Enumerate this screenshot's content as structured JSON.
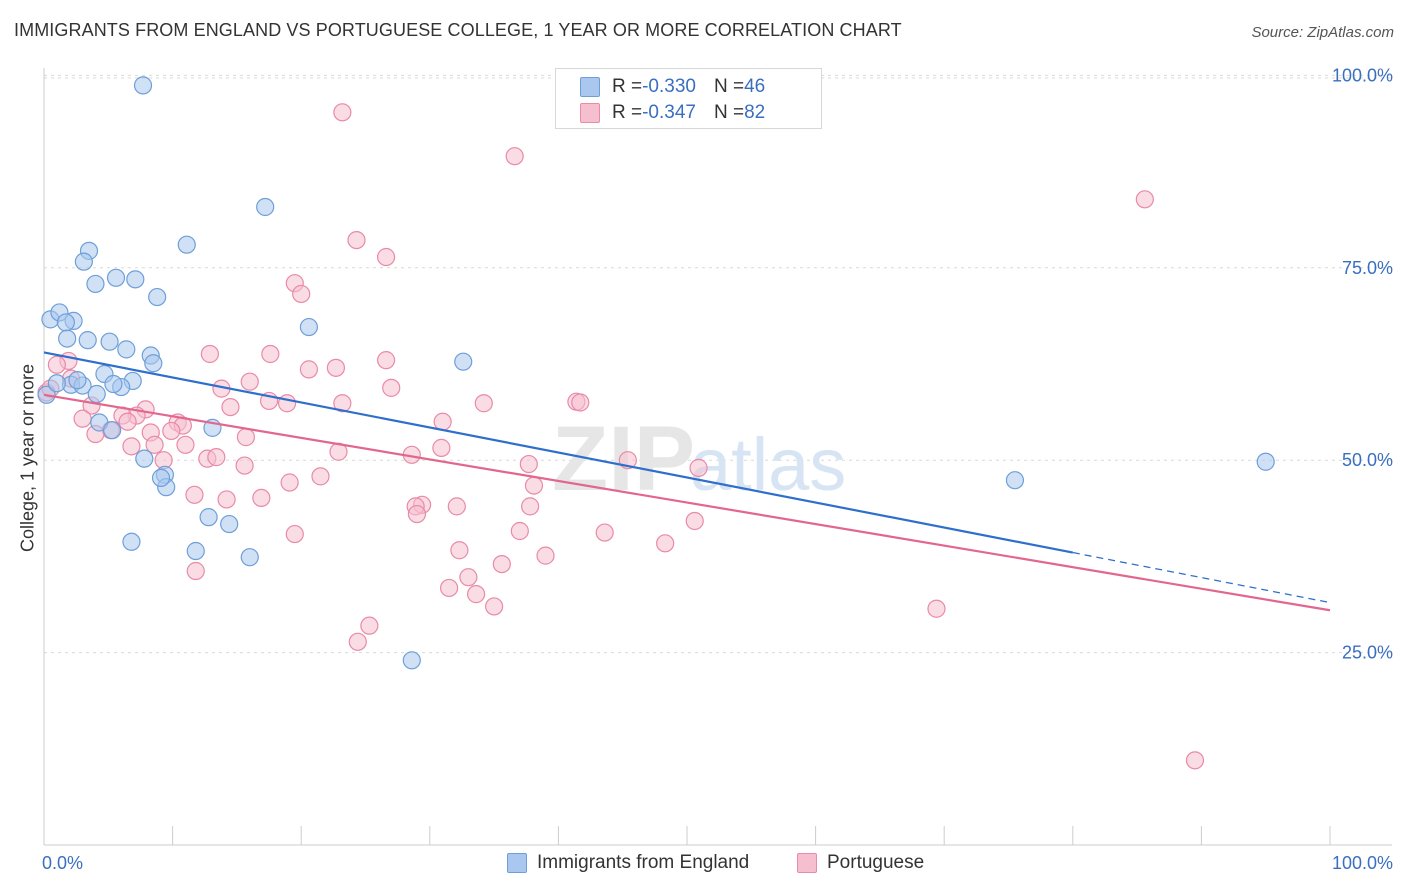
{
  "title": "IMMIGRANTS FROM ENGLAND VS PORTUGUESE COLLEGE, 1 YEAR OR MORE CORRELATION CHART",
  "source": "Source: ZipAtlas.com",
  "watermark": {
    "zip": "ZIP",
    "atlas": "atlas"
  },
  "colors": {
    "blue_fill": "#aac8ef",
    "blue_stroke": "#6e9fd8",
    "blue_line": "#2f6fcc",
    "pink_fill": "#f6bfd0",
    "pink_stroke": "#e98aa8",
    "pink_line": "#e2678e",
    "axis_text": "#3a6fc0",
    "grid": "#d9d9d9"
  },
  "legend": {
    "rows": [
      {
        "r_label": "R = ",
        "r_value": "-0.330",
        "n_label": "N = ",
        "n_value": "46"
      },
      {
        "r_label": "R = ",
        "r_value": "-0.347",
        "n_label": "N = ",
        "n_value": "82"
      }
    ]
  },
  "bottom_legend": {
    "blue": "Immigrants from England",
    "pink": "Portuguese"
  },
  "chart_data": {
    "type": "scatter",
    "title": "IMMIGRANTS FROM ENGLAND VS PORTUGUESE COLLEGE, 1 YEAR OR MORE CORRELATION CHART",
    "xlabel": "",
    "ylabel": "College, 1 year or more",
    "xlim": [
      0,
      100
    ],
    "ylim": [
      0,
      102
    ],
    "x_tick_labels": [
      "0.0%",
      "100.0%"
    ],
    "y_ticks": [
      25,
      50,
      75,
      100
    ],
    "y_tick_labels": [
      "25.0%",
      "50.0%",
      "75.0%",
      "100.0%"
    ],
    "grid": true,
    "series": [
      {
        "name": "Immigrants from England",
        "color": "blue",
        "r": -0.33,
        "n": 46,
        "trend": {
          "x0": 0,
          "y0": 64.0,
          "x1": 80,
          "y1": 38.0,
          "dash_to_x": 100,
          "dash_to_y": 31.5
        },
        "points": [
          [
            7.7,
            98.7
          ],
          [
            17.2,
            82.9
          ],
          [
            11.1,
            78.0
          ],
          [
            3.5,
            77.2
          ],
          [
            3.1,
            75.8
          ],
          [
            5.6,
            73.7
          ],
          [
            7.1,
            73.5
          ],
          [
            4.0,
            72.9
          ],
          [
            8.8,
            71.2
          ],
          [
            20.6,
            67.3
          ],
          [
            0.5,
            68.3
          ],
          [
            1.2,
            69.2
          ],
          [
            2.3,
            68.1
          ],
          [
            1.7,
            67.9
          ],
          [
            3.4,
            65.6
          ],
          [
            5.1,
            65.4
          ],
          [
            1.8,
            65.8
          ],
          [
            6.4,
            64.4
          ],
          [
            8.3,
            63.6
          ],
          [
            8.5,
            62.6
          ],
          [
            32.6,
            62.8
          ],
          [
            4.7,
            61.2
          ],
          [
            6.9,
            60.3
          ],
          [
            2.1,
            59.8
          ],
          [
            3.0,
            59.7
          ],
          [
            6.0,
            59.5
          ],
          [
            5.4,
            59.9
          ],
          [
            4.1,
            58.6
          ],
          [
            0.2,
            58.5
          ],
          [
            4.3,
            54.9
          ],
          [
            5.3,
            53.9
          ],
          [
            13.1,
            54.2
          ],
          [
            7.8,
            50.2
          ],
          [
            75.5,
            47.4
          ],
          [
            95.0,
            49.8
          ],
          [
            9.4,
            48.1
          ],
          [
            9.5,
            46.5
          ],
          [
            12.8,
            42.6
          ],
          [
            14.4,
            41.7
          ],
          [
            11.8,
            38.2
          ],
          [
            6.8,
            39.4
          ],
          [
            16.0,
            37.4
          ],
          [
            28.6,
            24.0
          ],
          [
            9.1,
            47.7
          ],
          [
            1.0,
            60.0
          ],
          [
            2.6,
            60.4
          ]
        ]
      },
      {
        "name": "Portuguese",
        "color": "pink",
        "r": -0.347,
        "n": 82,
        "trend": {
          "x0": 0,
          "y0": 58.5,
          "x1": 100,
          "y1": 30.5
        },
        "points": [
          [
            23.2,
            95.2
          ],
          [
            36.6,
            89.5
          ],
          [
            85.6,
            83.9
          ],
          [
            24.3,
            78.6
          ],
          [
            26.6,
            76.4
          ],
          [
            19.5,
            73.0
          ],
          [
            20.0,
            71.6
          ],
          [
            12.9,
            63.8
          ],
          [
            17.6,
            63.8
          ],
          [
            26.6,
            63.0
          ],
          [
            1.9,
            62.9
          ],
          [
            1.0,
            62.4
          ],
          [
            20.6,
            61.8
          ],
          [
            22.7,
            62.0
          ],
          [
            16.0,
            60.2
          ],
          [
            2.1,
            60.6
          ],
          [
            27.0,
            59.4
          ],
          [
            13.8,
            59.3
          ],
          [
            17.5,
            57.7
          ],
          [
            23.2,
            57.4
          ],
          [
            34.2,
            57.4
          ],
          [
            41.4,
            57.6
          ],
          [
            18.9,
            57.4
          ],
          [
            14.5,
            56.9
          ],
          [
            7.9,
            56.6
          ],
          [
            3.7,
            57.1
          ],
          [
            7.2,
            55.8
          ],
          [
            6.1,
            55.8
          ],
          [
            3.0,
            55.4
          ],
          [
            6.5,
            55.0
          ],
          [
            10.4,
            54.9
          ],
          [
            31.0,
            55.0
          ],
          [
            10.8,
            54.5
          ],
          [
            5.2,
            53.9
          ],
          [
            4.0,
            53.4
          ],
          [
            8.3,
            53.6
          ],
          [
            15.7,
            53.0
          ],
          [
            11.0,
            52.0
          ],
          [
            8.6,
            52.0
          ],
          [
            6.8,
            51.8
          ],
          [
            22.9,
            51.1
          ],
          [
            28.6,
            50.7
          ],
          [
            30.9,
            51.6
          ],
          [
            9.3,
            50.0
          ],
          [
            12.7,
            50.2
          ],
          [
            15.6,
            49.3
          ],
          [
            37.7,
            49.5
          ],
          [
            45.4,
            50.0
          ],
          [
            50.9,
            49.0
          ],
          [
            21.5,
            47.9
          ],
          [
            19.1,
            47.1
          ],
          [
            38.1,
            46.7
          ],
          [
            11.7,
            45.5
          ],
          [
            14.2,
            44.9
          ],
          [
            16.9,
            45.1
          ],
          [
            29.4,
            44.2
          ],
          [
            28.9,
            44.0
          ],
          [
            32.1,
            44.0
          ],
          [
            37.8,
            44.0
          ],
          [
            29.0,
            43.0
          ],
          [
            50.6,
            42.1
          ],
          [
            37.0,
            40.8
          ],
          [
            43.6,
            40.6
          ],
          [
            19.5,
            40.4
          ],
          [
            48.3,
            39.2
          ],
          [
            32.3,
            38.3
          ],
          [
            39.0,
            37.6
          ],
          [
            35.6,
            36.5
          ],
          [
            11.8,
            35.6
          ],
          [
            33.0,
            34.8
          ],
          [
            31.5,
            33.4
          ],
          [
            33.6,
            32.6
          ],
          [
            35.0,
            31.0
          ],
          [
            69.4,
            30.7
          ],
          [
            25.3,
            28.5
          ],
          [
            24.4,
            26.4
          ],
          [
            89.5,
            11.0
          ],
          [
            0.2,
            58.8
          ],
          [
            0.5,
            59.3
          ],
          [
            41.7,
            57.5
          ],
          [
            9.9,
            53.8
          ],
          [
            13.4,
            50.4
          ]
        ]
      }
    ]
  }
}
